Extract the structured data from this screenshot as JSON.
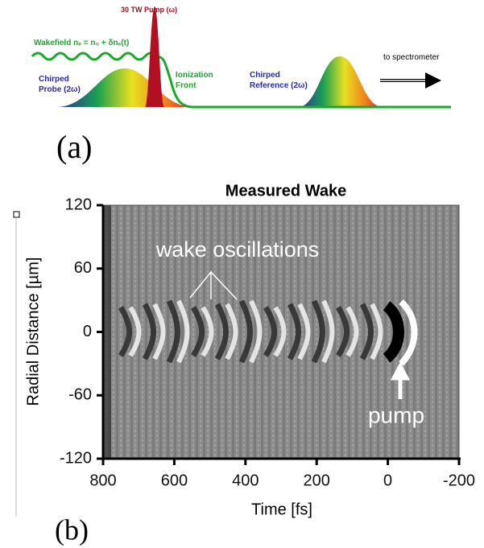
{
  "panel_a": {
    "pump": "30 TW Pump (ω)",
    "wakefield": "Wakefield nₑ = n₀ + δnₑ(t)",
    "ionization": [
      "Ionization",
      "Front"
    ],
    "probe": [
      "Chirped",
      "Probe (2ω)"
    ],
    "reference": [
      "Chirped",
      "Reference (2ω)"
    ],
    "spectrometer": "to spectrometer",
    "label": "(a)"
  },
  "chart_data": {
    "type": "heatmap",
    "title": "Measured Wake",
    "x_label": "Time [fs]",
    "y_label": "Radial Distance [µm]",
    "xlim": [
      800,
      -200
    ],
    "ylim": [
      -120,
      120
    ],
    "xticks": [
      800,
      600,
      400,
      200,
      0,
      -200
    ],
    "yticks": [
      120,
      60,
      0,
      -60,
      -120
    ],
    "annotations": [
      "wake oscillations",
      "pump"
    ]
  },
  "panel_b_label": "(b)"
}
